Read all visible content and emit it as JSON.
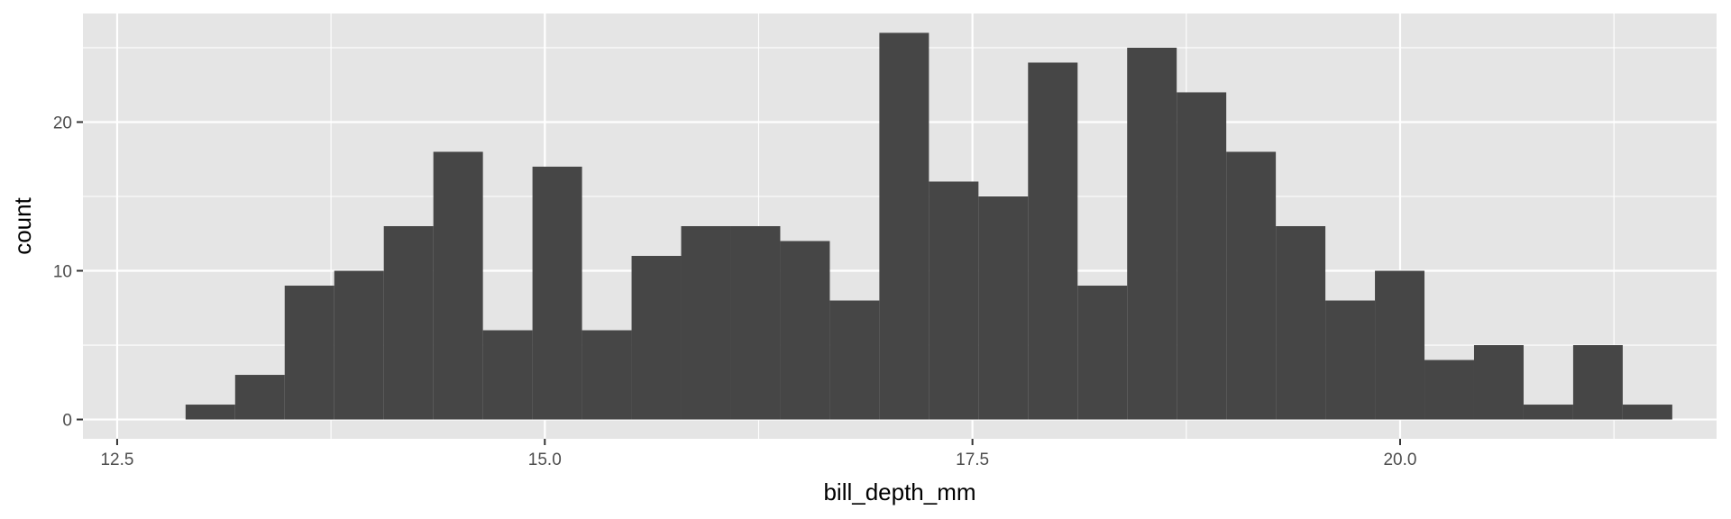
{
  "chart_data": {
    "type": "bar",
    "subtype": "histogram",
    "title": "",
    "xlabel": "bill_depth_mm",
    "ylabel": "count",
    "xlim": [
      12.3,
      21.85
    ],
    "ylim": [
      -1.3,
      27.3
    ],
    "x_ticks": [
      12.5,
      15.0,
      17.5,
      20.0
    ],
    "x_tick_labels": [
      "12.5",
      "15.0",
      "17.5",
      "20.0"
    ],
    "y_ticks": [
      0,
      10,
      20
    ],
    "y_tick_labels": [
      "0",
      "10",
      "20"
    ],
    "bin_start": 12.9,
    "bin_width": 0.2897,
    "values": [
      1,
      3,
      9,
      10,
      13,
      18,
      6,
      17,
      6,
      11,
      13,
      13,
      12,
      8,
      26,
      16,
      15,
      24,
      9,
      25,
      22,
      18,
      13,
      8,
      10,
      4,
      5,
      1,
      5,
      1
    ],
    "grid": true,
    "legend": "none",
    "colors": {
      "panel_background": "#e5e5e5",
      "grid": "#ffffff",
      "bar_fill": "#464646"
    }
  }
}
